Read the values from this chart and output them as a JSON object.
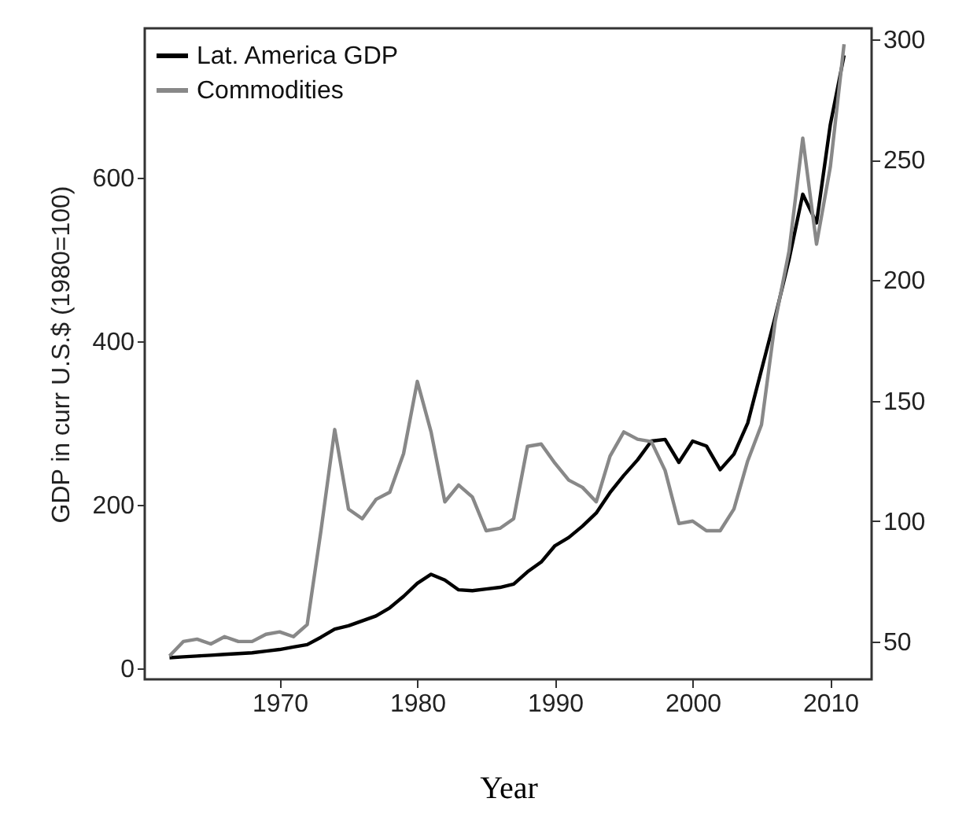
{
  "chart_data": {
    "type": "line",
    "xlabel": "Year",
    "ylabel": "GDP in curr U.S.$ (1980=100)",
    "x": [
      1962,
      1963,
      1964,
      1965,
      1966,
      1967,
      1968,
      1969,
      1970,
      1971,
      1972,
      1973,
      1974,
      1975,
      1976,
      1977,
      1978,
      1979,
      1980,
      1981,
      1982,
      1983,
      1984,
      1985,
      1986,
      1987,
      1988,
      1989,
      1990,
      1991,
      1992,
      1993,
      1994,
      1995,
      1996,
      1997,
      1998,
      1999,
      2000,
      2001,
      2002,
      2003,
      2004,
      2005,
      2006,
      2007,
      2008,
      2009,
      2010,
      2011
    ],
    "series": [
      {
        "name": "Lat. America GDP",
        "color": "#000000",
        "values": [
          13,
          14,
          15,
          16,
          17,
          18,
          19,
          21,
          23,
          26,
          29,
          38,
          48,
          52,
          58,
          64,
          74,
          88,
          104,
          115,
          108,
          96,
          95,
          97,
          99,
          103,
          118,
          130,
          150,
          160,
          174,
          190,
          215,
          236,
          255,
          278,
          280,
          252,
          278,
          272,
          243,
          262,
          300,
          365,
          430,
          500,
          580,
          545,
          665,
          750
        ]
      },
      {
        "name": "Commodities",
        "color": "#888888",
        "axis": "y2",
        "values": [
          44,
          50,
          51,
          49,
          52,
          50,
          50,
          53,
          54,
          52,
          57,
          96,
          138,
          105,
          101,
          109,
          112,
          128,
          158,
          137,
          108,
          115,
          110,
          96,
          97,
          101,
          131,
          132,
          124,
          117,
          114,
          108,
          127,
          137,
          134,
          133,
          121,
          99,
          100,
          96,
          96,
          105,
          125,
          140,
          183,
          212,
          259,
          215,
          247,
          298
        ]
      }
    ],
    "xlim": [
      1960.2,
      2013
    ],
    "xticks": [
      1970,
      1980,
      1990,
      2000,
      2010
    ],
    "ylim": [
      -13.5,
      783
    ],
    "yticks": [
      0,
      200,
      400,
      600
    ],
    "y2lim": [
      34.3,
      304.6
    ],
    "y2ticks": [
      50,
      100,
      150,
      200,
      250,
      300
    ],
    "legend": "top left",
    "grid": false,
    "line_style": "solid",
    "marker": "none"
  }
}
